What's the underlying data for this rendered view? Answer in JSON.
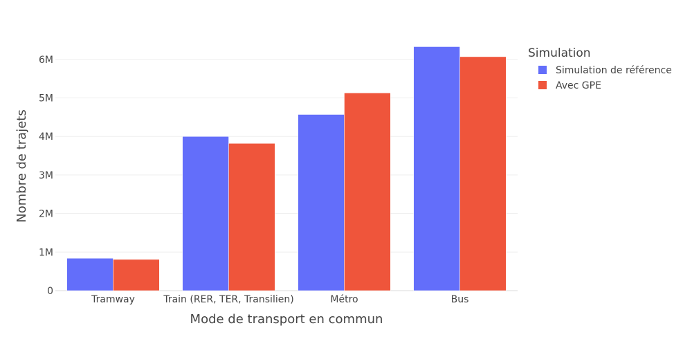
{
  "chart_data": {
    "type": "bar",
    "title": "",
    "xlabel": "Mode de transport en commun",
    "ylabel": "Nombre de trajets",
    "categories": [
      "Tramway",
      "Train (RER, TER, Transilien)",
      "Métro",
      "Bus"
    ],
    "series": [
      {
        "name": "Simulation de référence",
        "color": "#636efa",
        "values": [
          840000,
          4000000,
          4570000,
          6330000
        ]
      },
      {
        "name": "Avec GPE",
        "color": "#ef553b",
        "values": [
          810000,
          3820000,
          5130000,
          6070000
        ]
      }
    ],
    "ylim": [
      0,
      6500000
    ],
    "yticks": [
      0,
      1000000,
      2000000,
      3000000,
      4000000,
      5000000,
      6000000
    ],
    "ytick_labels": [
      "0",
      "1M",
      "2M",
      "3M",
      "4M",
      "5M",
      "6M"
    ],
    "grid": true,
    "legend": {
      "title": "Simulation",
      "position": "top-right"
    }
  }
}
